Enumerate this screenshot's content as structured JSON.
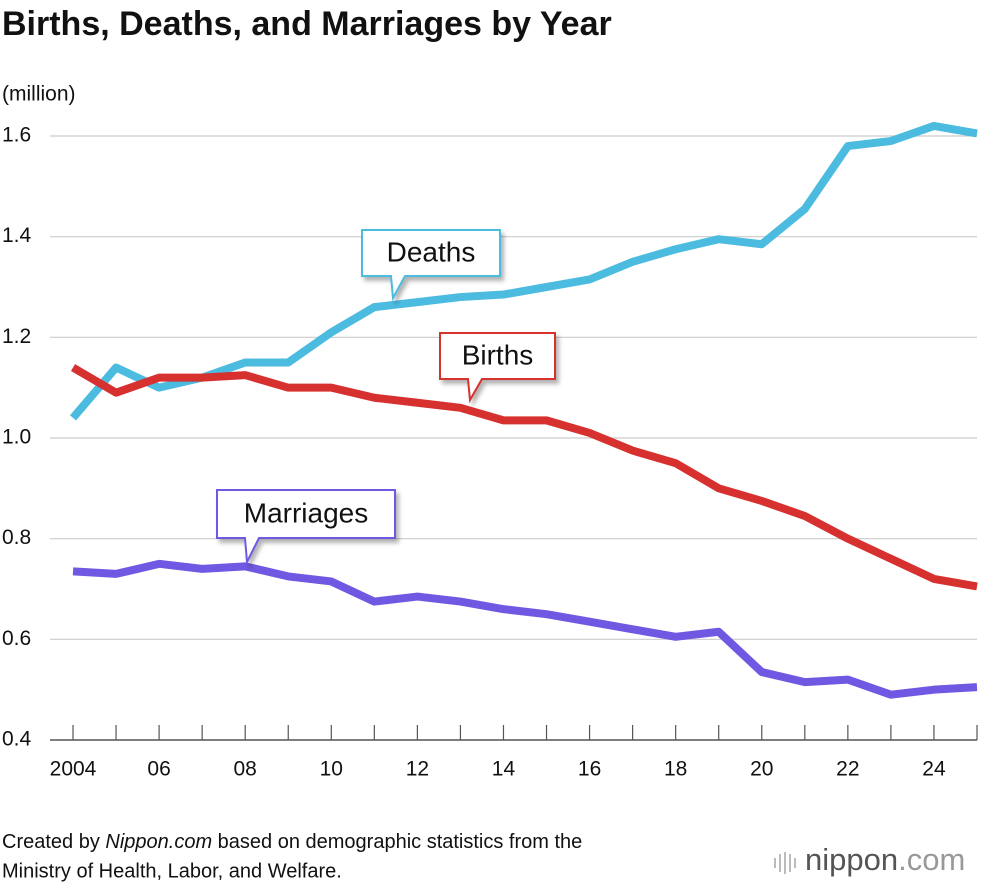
{
  "chart_data": {
    "type": "line",
    "title": "Births, Deaths, and Marriages by Year",
    "y_label": "(million)",
    "x": [
      2004,
      2005,
      2006,
      2007,
      2008,
      2009,
      2010,
      2011,
      2012,
      2013,
      2014,
      2015,
      2016,
      2017,
      2018,
      2019,
      2020,
      2021,
      2022,
      2023,
      2024,
      2025
    ],
    "xlim": [
      2004,
      2025
    ],
    "xticks": [
      {
        "value": 2004,
        "label": "2004"
      },
      {
        "value": 2006,
        "label": "06"
      },
      {
        "value": 2008,
        "label": "08"
      },
      {
        "value": 2010,
        "label": "10"
      },
      {
        "value": 2012,
        "label": "12"
      },
      {
        "value": 2014,
        "label": "14"
      },
      {
        "value": 2016,
        "label": "16"
      },
      {
        "value": 2018,
        "label": "18"
      },
      {
        "value": 2020,
        "label": "20"
      },
      {
        "value": 2022,
        "label": "22"
      },
      {
        "value": 2024,
        "label": "24"
      }
    ],
    "ylim": [
      0.4,
      1.6
    ],
    "yticks": [
      0.4,
      0.6,
      0.8,
      {
        "value": 1,
        "label": "1.0"
      },
      1.2,
      1.4,
      1.6
    ],
    "grid": true,
    "series": [
      {
        "name": "Deaths",
        "color": "#4bbbdf",
        "values": [
          1.04,
          1.14,
          1.1,
          1.12,
          1.15,
          1.15,
          1.21,
          1.26,
          1.27,
          1.28,
          1.285,
          1.3,
          1.315,
          1.35,
          1.375,
          1.395,
          1.385,
          1.455,
          1.58,
          1.59,
          1.62,
          1.605
        ]
      },
      {
        "name": "Births",
        "color": "#d7312f",
        "values": [
          1.14,
          1.09,
          1.12,
          1.12,
          1.125,
          1.1,
          1.1,
          1.08,
          1.07,
          1.06,
          1.035,
          1.035,
          1.01,
          0.975,
          0.95,
          0.9,
          0.875,
          0.845,
          0.8,
          0.76,
          0.72,
          0.705
        ]
      },
      {
        "name": "Marriages",
        "color": "#7158e2",
        "values": [
          0.735,
          0.73,
          0.75,
          0.74,
          0.745,
          0.725,
          0.715,
          0.675,
          0.685,
          0.675,
          0.66,
          0.65,
          0.635,
          0.62,
          0.605,
          0.615,
          0.535,
          0.515,
          0.52,
          0.49,
          0.5,
          0.505
        ]
      }
    ],
    "source": [
      "Created by ",
      "Nippon.com",
      " based on demographic statistics from the",
      "Ministry of Health, Labor, and Welfare."
    ],
    "logo": [
      "nippon",
      ".com"
    ]
  }
}
